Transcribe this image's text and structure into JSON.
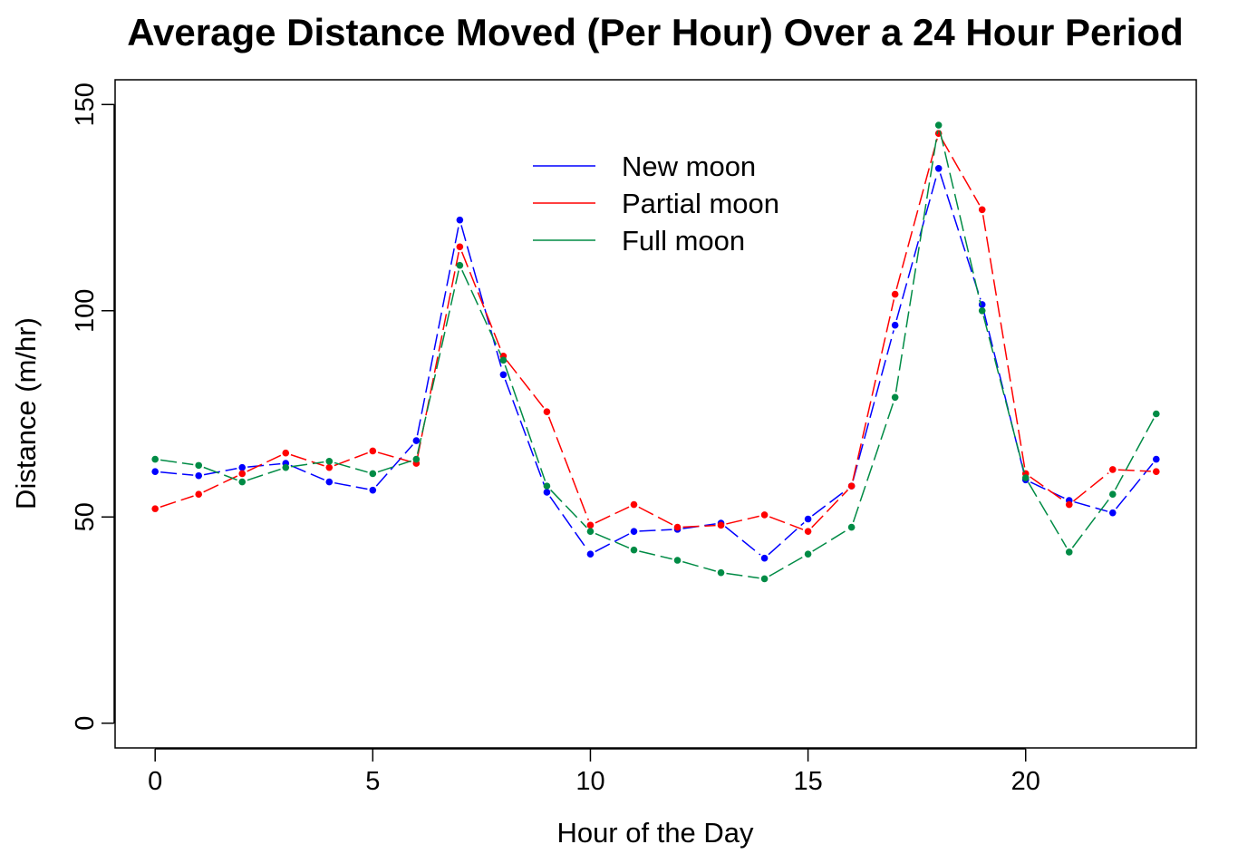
{
  "chart_data": {
    "type": "line",
    "title": "Average Distance Moved (Per Hour) Over a 24 Hour Period",
    "xlabel": "Hour of the Day",
    "ylabel": "Distance (m/hr)",
    "xlim": [
      -0.92,
      23.92
    ],
    "ylim": [
      -6,
      156
    ],
    "x_ticks": [
      0,
      5,
      10,
      15,
      20
    ],
    "y_ticks": [
      0,
      50,
      100,
      150
    ],
    "grid": false,
    "legend_position": "top-center",
    "x": [
      0,
      1,
      2,
      3,
      4,
      5,
      6,
      7,
      8,
      9,
      10,
      11,
      12,
      13,
      14,
      15,
      16,
      17,
      18,
      19,
      20,
      21,
      22,
      23
    ],
    "series": [
      {
        "name": "New moon",
        "color": "#0000ff",
        "values": [
          61,
          60,
          62,
          63,
          58.5,
          56.5,
          68.5,
          122,
          84.5,
          56,
          41,
          46.5,
          47,
          48.5,
          40,
          49.5,
          57.5,
          96.5,
          134.5,
          101.5,
          59,
          54,
          51,
          64
        ]
      },
      {
        "name": "Partial moon",
        "color": "#ff0000",
        "values": [
          52,
          55.5,
          60.5,
          65.5,
          62,
          66,
          63,
          115.5,
          89,
          75.5,
          48,
          53,
          47.5,
          48,
          50.5,
          46.5,
          57.5,
          104,
          143,
          124.5,
          60.5,
          53,
          61.5,
          61
        ]
      },
      {
        "name": "Full moon",
        "color": "#008b45",
        "values": [
          64,
          62.5,
          58.5,
          62,
          63.5,
          60.5,
          64,
          111,
          88,
          57.5,
          46.5,
          42,
          39.5,
          36.5,
          35,
          41,
          47.5,
          79,
          145,
          100,
          59.5,
          41.5,
          55.5,
          75
        ]
      }
    ]
  }
}
